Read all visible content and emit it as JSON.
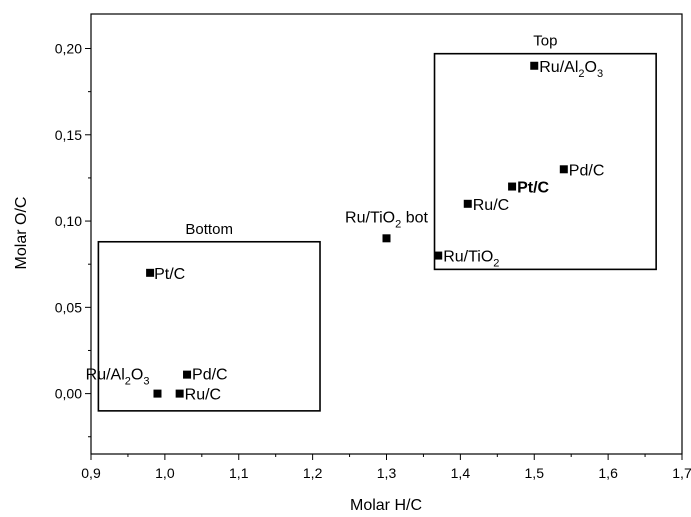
{
  "chart_data": {
    "type": "scatter",
    "title": "",
    "xlabel": "Molar H/C",
    "ylabel": "Molar O/C",
    "xlim": [
      0.9,
      1.7
    ],
    "ylim": [
      -0.035,
      0.22
    ],
    "xticks": [
      "0,9",
      "1,0",
      "1,1",
      "1,2",
      "1,3",
      "1,4",
      "1,5",
      "1,6",
      "1,7"
    ],
    "yticks": [
      "0,00",
      "0,05",
      "0,10",
      "0,15",
      "0,20"
    ],
    "grid": false,
    "legend": "none",
    "marker_color": "#000000",
    "points": [
      {
        "x": 0.98,
        "y": 0.07,
        "label": "Pt/C",
        "sub": "",
        "tail": "",
        "bold": false
      },
      {
        "x": 0.99,
        "y": 0.0,
        "label": "Ru/Al",
        "sub": "2",
        "tail": "O",
        "sub2": "3",
        "bold": false
      },
      {
        "x": 1.02,
        "y": 0.0,
        "label": "Ru/C",
        "sub": "",
        "tail": "",
        "bold": false
      },
      {
        "x": 1.03,
        "y": 0.011,
        "label": "Pd/C",
        "sub": "",
        "tail": "",
        "bold": false
      },
      {
        "x": 1.3,
        "y": 0.09,
        "label": "Ru/TiO",
        "sub": "2",
        "tail": " bot",
        "bold": false
      },
      {
        "x": 1.37,
        "y": 0.08,
        "label": "Ru/TiO",
        "sub": "2",
        "tail": "",
        "bold": false
      },
      {
        "x": 1.41,
        "y": 0.11,
        "label": "Ru/C",
        "sub": "",
        "tail": "",
        "bold": false
      },
      {
        "x": 1.47,
        "y": 0.12,
        "label": "Pt/C",
        "sub": "",
        "tail": "",
        "bold": true
      },
      {
        "x": 1.5,
        "y": 0.19,
        "label": "Ru/Al",
        "sub": "2",
        "tail": "O",
        "sub2": "3",
        "bold": false
      },
      {
        "x": 1.54,
        "y": 0.13,
        "label": "Pd/C",
        "sub": "",
        "tail": "",
        "bold": false
      }
    ],
    "regions": [
      {
        "label": "Bottom",
        "x0": 0.91,
        "x1": 1.21,
        "y0": -0.01,
        "y1": 0.088
      },
      {
        "label": "Top",
        "x0": 1.365,
        "x1": 1.665,
        "y0": 0.072,
        "y1": 0.197
      }
    ]
  }
}
